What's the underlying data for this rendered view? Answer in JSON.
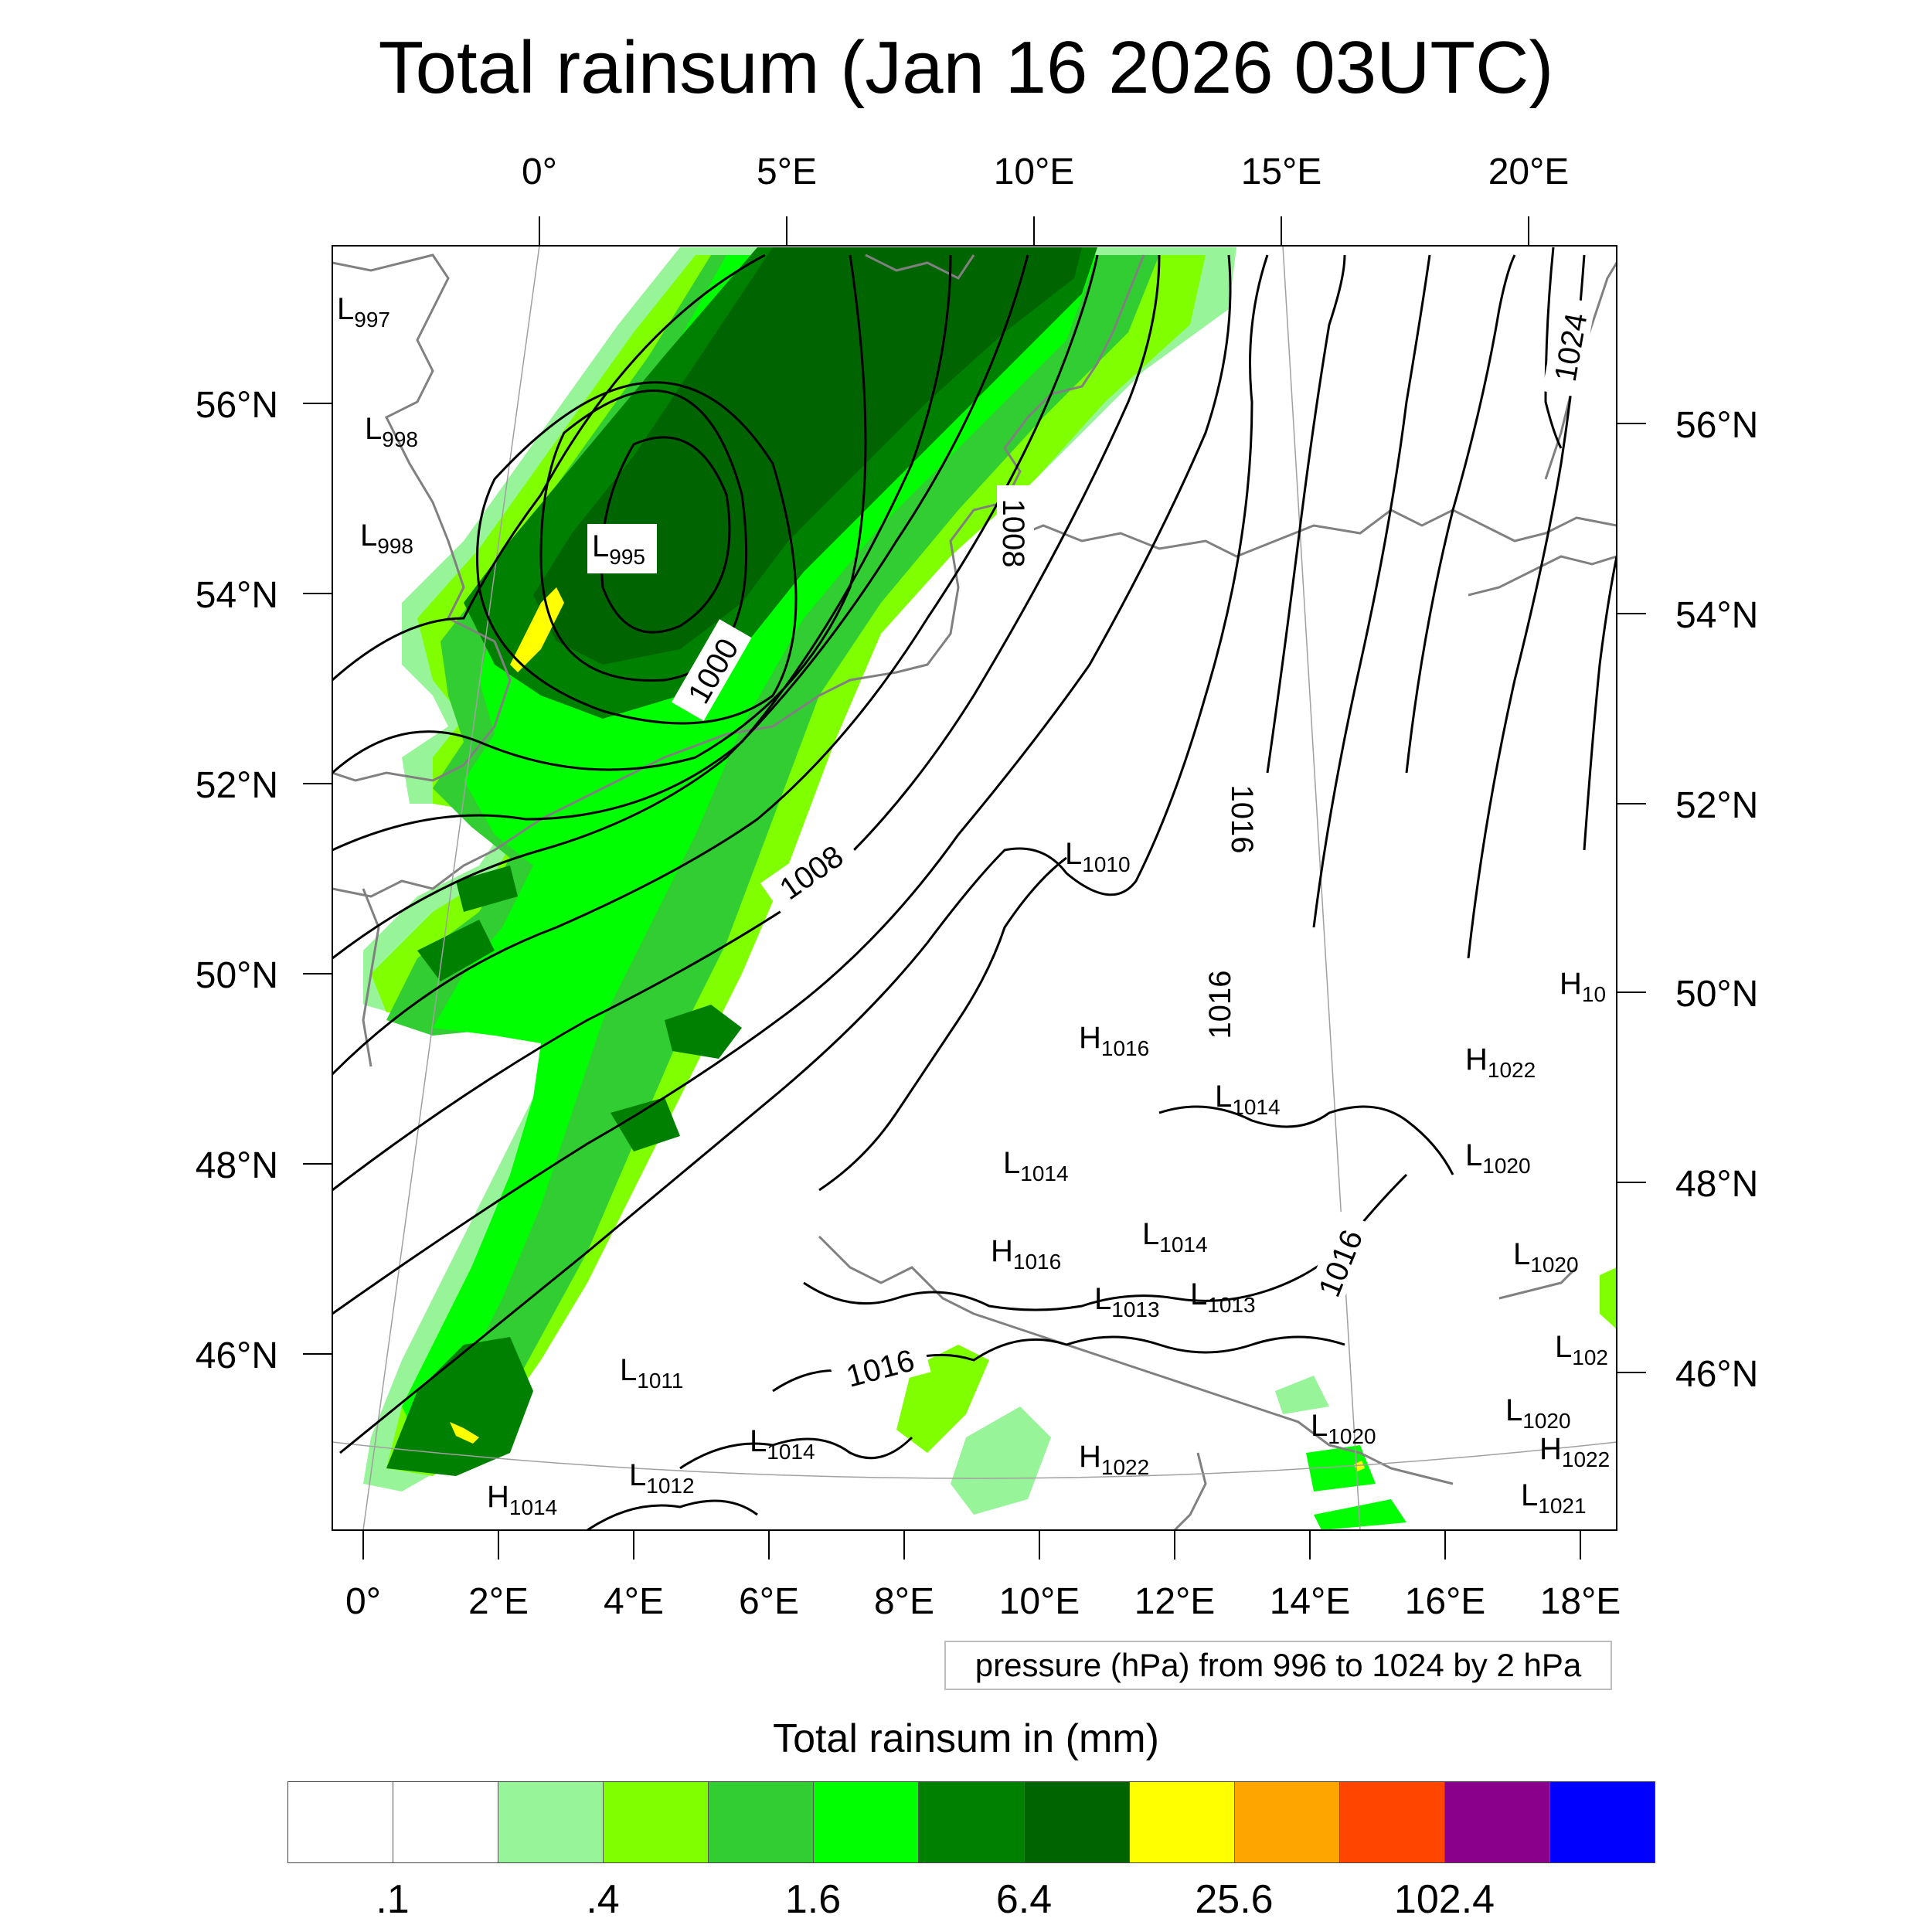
{
  "title": "Total rainsum (Jan 16 2026 03UTC)",
  "top_lon_labels": [
    "0°",
    "5°E",
    "10°E",
    "15°E",
    "20°E"
  ],
  "bottom_lon_labels": [
    "0°",
    "2°E",
    "4°E",
    "6°E",
    "8°E",
    "10°E",
    "12°E",
    "14°E",
    "16°E",
    "18°E"
  ],
  "left_lat_labels": [
    "56°N",
    "54°N",
    "52°N",
    "50°N",
    "48°N",
    "46°N"
  ],
  "right_lat_labels": [
    "56°N",
    "54°N",
    "52°N",
    "50°N",
    "48°N",
    "46°N"
  ],
  "pressure_systems": [
    {
      "type": "L",
      "value": "997"
    },
    {
      "type": "L",
      "value": "998"
    },
    {
      "type": "L",
      "value": "998"
    },
    {
      "type": "L",
      "value": "995"
    },
    {
      "type": "L",
      "value": "1010"
    },
    {
      "type": "H",
      "value": "1016"
    },
    {
      "type": "L",
      "value": "1014"
    },
    {
      "type": "L",
      "value": "1014"
    },
    {
      "type": "H",
      "value": "1016"
    },
    {
      "type": "L",
      "value": "1014"
    },
    {
      "type": "L",
      "value": "1013"
    },
    {
      "type": "L",
      "value": "1013"
    },
    {
      "type": "H",
      "value": "1022"
    },
    {
      "type": "L",
      "value": "1020"
    },
    {
      "type": "L",
      "value": "1020"
    },
    {
      "type": "L",
      "value": "1011"
    },
    {
      "type": "L",
      "value": "1014"
    },
    {
      "type": "L",
      "value": "1012"
    },
    {
      "type": "H",
      "value": "1014"
    },
    {
      "type": "H",
      "value": "1022"
    },
    {
      "type": "L",
      "value": "1020"
    },
    {
      "type": "L",
      "value": "1020"
    },
    {
      "type": "H",
      "value": "1022"
    },
    {
      "type": "L",
      "value": "1021"
    },
    {
      "type": "H",
      "value": "10"
    },
    {
      "type": "L",
      "value": "102"
    }
  ],
  "contour_labels": [
    "1000",
    "1008",
    "1008",
    "1016",
    "1016",
    "1016",
    "1016",
    "1024"
  ],
  "pressure_note": "pressure (hPa) from 996 to 1024 by 2 hPa",
  "colorbar": {
    "title": "Total rainsum in (mm)",
    "colors": [
      "#ffffff",
      "#ffffff",
      "#98f498",
      "#7fff00",
      "#32cd32",
      "#00ff00",
      "#008000",
      "#006400",
      "#ffff00",
      "#ffa500",
      "#ff4500",
      "#8b008b",
      "#0000ff"
    ],
    "labels": [
      ".1",
      ".4",
      "1.6",
      "6.4",
      "25.6",
      "102.4"
    ]
  },
  "rain_colors": {
    "light": "#98f498",
    "lime": "#7fff00",
    "green_mid": "#32cd32",
    "green_bright": "#00ff00",
    "green": "#008000",
    "dark_green": "#006400",
    "yellow": "#ffff00"
  }
}
